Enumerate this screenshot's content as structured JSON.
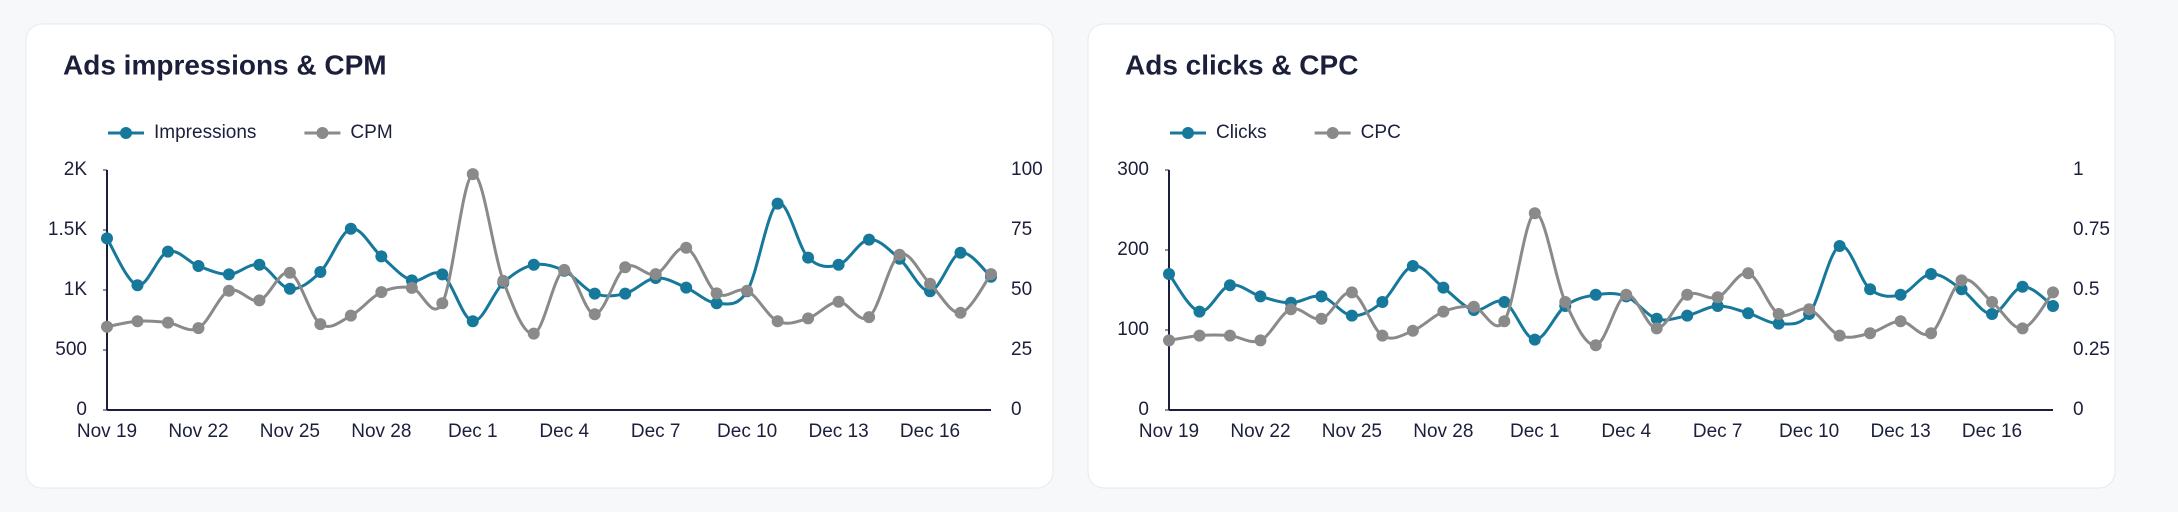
{
  "chart_data": [
    {
      "type": "line",
      "title": "Ads impressions & CPM",
      "categories": [
        "Nov 19",
        null,
        null,
        "Nov 22",
        null,
        null,
        "Nov 25",
        null,
        null,
        "Nov 28",
        null,
        null,
        "Dec 1",
        null,
        null,
        "Dec 4",
        null,
        null,
        "Dec 7",
        null,
        null,
        "Dec 10",
        null,
        null,
        "Dec 13",
        null,
        null,
        "Dec 16",
        null,
        null
      ],
      "series": [
        {
          "name": "Impressions",
          "color": "#16789a",
          "values": [
            1430,
            1040,
            1320,
            1200,
            1130,
            1210,
            1010,
            1150,
            1510,
            1280,
            1080,
            1130,
            740,
            1060,
            1210,
            1160,
            970,
            970,
            1100,
            1020,
            890,
            990,
            1720,
            1270,
            1210,
            1420,
            1260,
            990,
            1310,
            1110
          ]
        },
        {
          "name": "CPM",
          "color": "#8a8a8a",
          "axis": "y2",
          "values": [
            34.7,
            37,
            36.4,
            34.1,
            49.7,
            45.7,
            57.2,
            35.8,
            39.3,
            49.1,
            50.9,
            44.5,
            98.3,
            53.8,
            31.8,
            58.4,
            39.9,
            59.5,
            56.6,
            67.6,
            48.6,
            49.7,
            37,
            38.2,
            45.1,
            38.7,
            64.7,
            52.6,
            40.5,
            56.6
          ]
        }
      ],
      "ylim": [
        0,
        2000
      ],
      "yticks": [
        0,
        500,
        {
          "value": 1000,
          "label": "1K"
        },
        {
          "value": 1500,
          "label": "1.5K"
        },
        {
          "value": 2000,
          "label": "2K"
        }
      ],
      "y2lim": [
        0,
        100
      ],
      "y2ticks": [
        0,
        25,
        50,
        75,
        100
      ],
      "legend": "top-left"
    },
    {
      "type": "line",
      "title": "Ads clicks & CPC",
      "categories": [
        "Nov 19",
        null,
        null,
        "Nov 22",
        null,
        null,
        "Nov 25",
        null,
        null,
        "Nov 28",
        null,
        null,
        "Dec 1",
        null,
        null,
        "Dec 4",
        null,
        null,
        "Dec 7",
        null,
        null,
        "Dec 10",
        null,
        null,
        "Dec 13",
        null,
        null,
        "Dec 16",
        null,
        null
      ],
      "series": [
        {
          "name": "Clicks",
          "color": "#16789a",
          "values": [
            170,
            123,
            156,
            142,
            134,
            142,
            118,
            135,
            180,
            153,
            125,
            135,
            88,
            130,
            144,
            142,
            114,
            118,
            130,
            121,
            108,
            120,
            205,
            151,
            144,
            170,
            151,
            120,
            154,
            130
          ]
        },
        {
          "name": "CPC",
          "color": "#8a8a8a",
          "axis": "y2",
          "values": [
            0.29,
            0.31,
            0.31,
            0.29,
            0.42,
            0.38,
            0.49,
            0.31,
            0.33,
            0.41,
            0.43,
            0.37,
            0.82,
            0.45,
            0.27,
            0.48,
            0.34,
            0.48,
            0.47,
            0.57,
            0.4,
            0.42,
            0.31,
            0.32,
            0.37,
            0.32,
            0.54,
            0.45,
            0.34,
            0.49
          ]
        }
      ],
      "ylim": [
        0,
        300
      ],
      "yticks": [
        0,
        100,
        200,
        300
      ],
      "y2lim": [
        0,
        1
      ],
      "y2ticks": [
        0,
        0.25,
        0.5,
        0.75,
        1
      ],
      "legend": "top-left"
    }
  ]
}
